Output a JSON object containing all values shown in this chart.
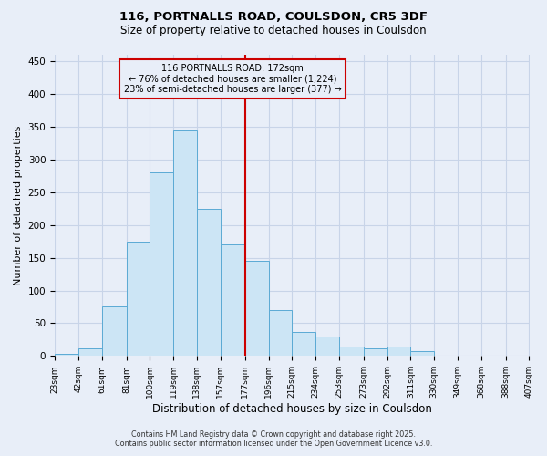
{
  "title_line1": "116, PORTNALLS ROAD, COULSDON, CR5 3DF",
  "title_line2": "Size of property relative to detached houses in Coulsdon",
  "xlabel": "Distribution of detached houses by size in Coulsdon",
  "ylabel": "Number of detached properties",
  "bin_labels": [
    "23sqm",
    "42sqm",
    "61sqm",
    "81sqm",
    "100sqm",
    "119sqm",
    "138sqm",
    "157sqm",
    "177sqm",
    "196sqm",
    "215sqm",
    "234sqm",
    "253sqm",
    "273sqm",
    "292sqm",
    "311sqm",
    "330sqm",
    "349sqm",
    "368sqm",
    "388sqm",
    "407sqm"
  ],
  "bar_heights": [
    3,
    11,
    75,
    175,
    280,
    345,
    225,
    170,
    145,
    70,
    37,
    30,
    15,
    11,
    14,
    7,
    1,
    0,
    0,
    0
  ],
  "bin_edges": [
    23,
    42,
    61,
    81,
    100,
    119,
    138,
    157,
    177,
    196,
    215,
    234,
    253,
    273,
    292,
    311,
    330,
    349,
    368,
    388,
    407
  ],
  "bar_color_fill": "#cce5f5",
  "bar_color_edge": "#5baad4",
  "vline_x_idx": 8,
  "vline_color": "#cc0000",
  "annotation_text_line1": "116 PORTNALLS ROAD: 172sqm",
  "annotation_text_line2": "← 76% of detached houses are smaller (1,224)",
  "annotation_text_line3": "23% of semi-detached houses are larger (377) →",
  "annotation_box_color": "#cc0000",
  "ylim": [
    0,
    460
  ],
  "yticks": [
    0,
    50,
    100,
    150,
    200,
    250,
    300,
    350,
    400,
    450
  ],
  "grid_color": "#c8d4e8",
  "bg_color": "#e8eef8",
  "footer_line1": "Contains HM Land Registry data © Crown copyright and database right 2025.",
  "footer_line2": "Contains public sector information licensed under the Open Government Licence v3.0."
}
